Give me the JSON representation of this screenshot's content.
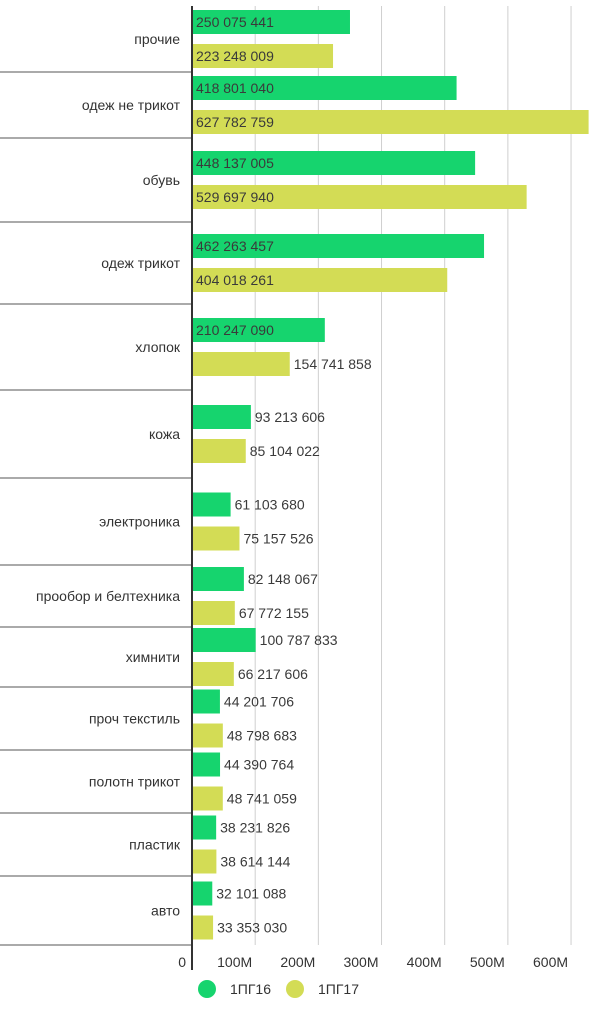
{
  "chart_data": {
    "type": "bar",
    "orientation": "horizontal",
    "title": "",
    "xlabel": "",
    "ylabel": "",
    "xlim": [
      0,
      630000000
    ],
    "grid": true,
    "legend_position": "bottom",
    "categories": [
      "прочие",
      "одеж не трикот",
      "обувь",
      "одеж трикот",
      "хлопок",
      "кожа",
      "электроника",
      "прообор и белтехника",
      "химнити",
      "проч текстиль",
      "полотн трикот",
      "пластик",
      "авто"
    ],
    "series": [
      {
        "name": "1ПГ16",
        "color": "#16d46e",
        "values": [
          250075441,
          418801040,
          448137005,
          462263457,
          210247090,
          93213606,
          61103680,
          82148067,
          100787833,
          44201706,
          44390764,
          38231826,
          32101088
        ],
        "labels": [
          "250 075 441",
          "418 801 040",
          "448 137 005",
          "462 263 457",
          "210 247 090",
          "93 213 606",
          "61 103 680",
          "82 148 067",
          "100 787 833",
          "44 201 706",
          "44 390 764",
          "38 231 826",
          "32 101 088"
        ]
      },
      {
        "name": "1ПГ17",
        "color": "#d3dc55",
        "values": [
          223248009,
          627782759,
          529697940,
          404018261,
          154741858,
          85104022,
          75157526,
          67772155,
          66217606,
          48798683,
          48741059,
          38614144,
          33353030
        ],
        "labels": [
          "223 248 009",
          "627 782 759",
          "529 697 940",
          "404 018 261",
          "154 741 858",
          "85 104 022",
          "75 157 526",
          "67 772 155",
          "66 217 606",
          "48 798 683",
          "48 741 059",
          "38 614 144",
          "33 353 030"
        ]
      }
    ],
    "x_ticks": [
      {
        "value": 0,
        "label": "0"
      },
      {
        "value": 100000000,
        "label": "100M"
      },
      {
        "value": 200000000,
        "label": "200M"
      },
      {
        "value": 300000000,
        "label": "300M"
      },
      {
        "value": 400000000,
        "label": "400M"
      },
      {
        "value": 500000000,
        "label": "500M"
      },
      {
        "value": 600000000,
        "label": "600M"
      }
    ]
  }
}
